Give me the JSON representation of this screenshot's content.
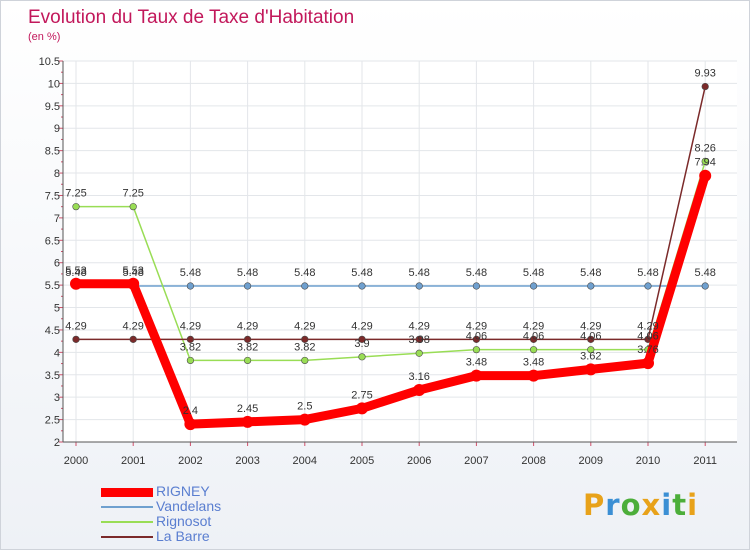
{
  "chart_data": {
    "type": "line",
    "title": "Evolution du Taux de Taxe d'Habitation",
    "subtitle": "(en %)",
    "xlabel": "",
    "ylabel": "",
    "ylim": [
      2,
      10.5
    ],
    "yticks": [
      "2",
      "2.5",
      "3",
      "3.5",
      "4",
      "4.5",
      "5",
      "5.5",
      "6",
      "6.5",
      "7",
      "7.5",
      "8",
      "8.5",
      "9",
      "9.5",
      "10",
      "10.5"
    ],
    "categories": [
      "2000",
      "2001",
      "2002",
      "2003",
      "2004",
      "2005",
      "2006",
      "2007",
      "2008",
      "2009",
      "2010",
      "2011"
    ],
    "legend_position": "bottom-left",
    "series": [
      {
        "name": "RIGNEY",
        "color": "#ff0000",
        "values": [
          5.53,
          5.53,
          2.4,
          2.45,
          2.5,
          2.75,
          3.16,
          3.48,
          3.48,
          3.62,
          3.76,
          7.94
        ],
        "labels": [
          "5.53",
          "5.53",
          "2.4",
          "2.45",
          "2.5",
          "2.75",
          "3.16",
          "3.48",
          "3.48",
          "3.62",
          "3.76",
          "7.94"
        ]
      },
      {
        "name": "Vandelans",
        "color": "#6fa0cf",
        "values": [
          5.48,
          5.48,
          5.48,
          5.48,
          5.48,
          5.48,
          5.48,
          5.48,
          5.48,
          5.48,
          5.48,
          5.48
        ],
        "labels": [
          "5.48",
          "5.48",
          "5.48",
          "5.48",
          "5.48",
          "5.48",
          "5.48",
          "5.48",
          "5.48",
          "5.48",
          "5.48",
          "5.48"
        ]
      },
      {
        "name": "Rignosot",
        "color": "#99dd55",
        "values": [
          7.25,
          7.25,
          3.82,
          3.82,
          3.82,
          3.9,
          3.98,
          4.06,
          4.06,
          4.06,
          4.06,
          8.26
        ],
        "labels": [
          "7.25",
          "7.25",
          "3.82",
          "3.82",
          "3.82",
          "3.9",
          "3.98",
          "4.06",
          "4.06",
          "4.06",
          "4.06",
          "8.26"
        ]
      },
      {
        "name": "La Barre",
        "color": "#7b2a2a",
        "values": [
          4.29,
          4.29,
          4.29,
          4.29,
          4.29,
          4.29,
          4.29,
          4.29,
          4.29,
          4.29,
          4.29,
          9.93
        ],
        "labels": [
          "4.29",
          "4.29",
          "4.29",
          "4.29",
          "4.29",
          "4.29",
          "4.29",
          "4.29",
          "4.29",
          "4.29",
          "4.29",
          "9.93"
        ]
      }
    ]
  },
  "brand": {
    "letters": [
      "P",
      "r",
      "o",
      "x",
      "i",
      "t",
      "i"
    ],
    "colors": [
      "#e8a21a",
      "#3b8fd4",
      "#4cae3a",
      "#e8a21a",
      "#3b8fd4",
      "#4cae3a",
      "#e8a21a"
    ]
  }
}
